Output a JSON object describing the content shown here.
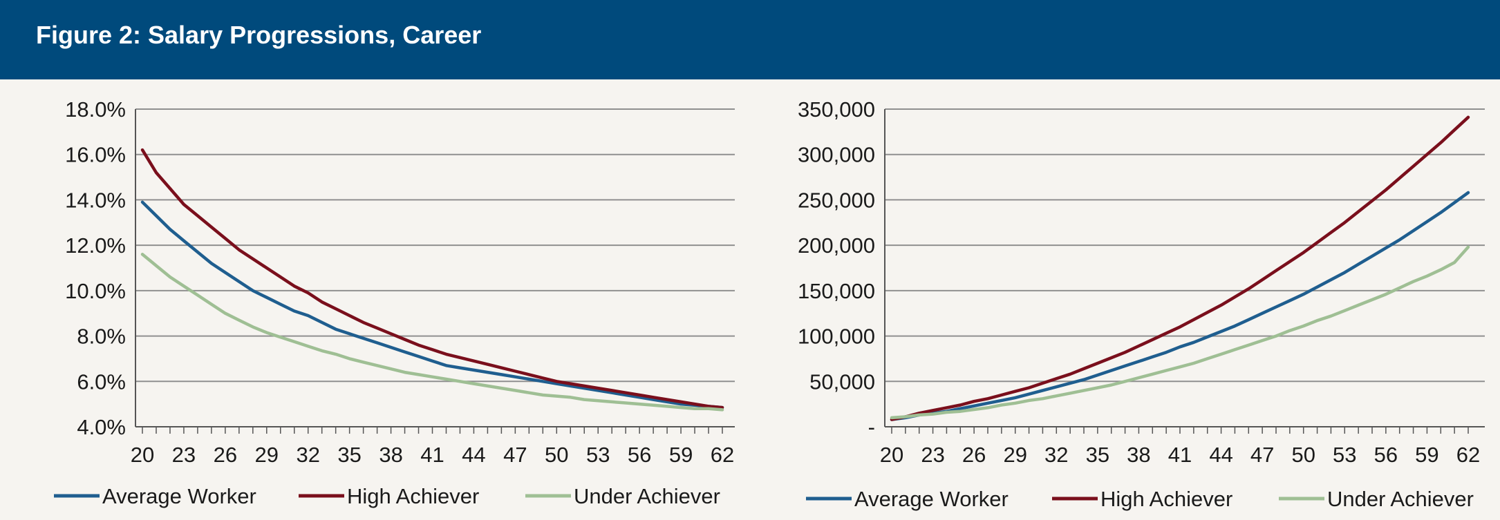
{
  "header": {
    "title": "Figure 2: Salary Progressions, Career"
  },
  "chart_data": [
    {
      "type": "line",
      "title": "",
      "xlabel": "",
      "ylabel": "",
      "x": [
        20,
        21,
        22,
        23,
        24,
        25,
        26,
        27,
        28,
        29,
        30,
        31,
        32,
        33,
        34,
        35,
        36,
        37,
        38,
        39,
        40,
        41,
        42,
        43,
        44,
        45,
        46,
        47,
        48,
        49,
        50,
        51,
        52,
        53,
        54,
        55,
        56,
        57,
        58,
        59,
        60,
        61,
        62
      ],
      "x_tick_labels": [
        "20",
        "23",
        "26",
        "29",
        "32",
        "35",
        "38",
        "41",
        "44",
        "47",
        "50",
        "53",
        "56",
        "59",
        "62"
      ],
      "y_tick_labels": [
        "18.0%",
        "16.0%",
        "14.0%",
        "12.0%",
        "10.0%",
        "8.0%",
        "6.0%",
        "4.0%"
      ],
      "ylim": [
        4,
        18
      ],
      "y_unit": "%",
      "grid": true,
      "legend_position": "bottom",
      "series": [
        {
          "name": "Average Worker",
          "color": "#1f5e8f",
          "values": [
            13.9,
            13.3,
            12.7,
            12.2,
            11.7,
            11.2,
            10.8,
            10.4,
            10.0,
            9.7,
            9.4,
            9.1,
            8.9,
            8.6,
            8.3,
            8.1,
            7.9,
            7.7,
            7.5,
            7.3,
            7.1,
            6.9,
            6.7,
            6.6,
            6.5,
            6.4,
            6.3,
            6.2,
            6.1,
            6.0,
            5.9,
            5.8,
            5.7,
            5.6,
            5.5,
            5.4,
            5.3,
            5.2,
            5.1,
            5.0,
            4.95,
            4.9,
            4.85
          ]
        },
        {
          "name": "High Achiever",
          "color": "#7a0f1c",
          "values": [
            16.2,
            15.2,
            14.5,
            13.8,
            13.3,
            12.8,
            12.3,
            11.8,
            11.4,
            11.0,
            10.6,
            10.2,
            9.9,
            9.5,
            9.2,
            8.9,
            8.6,
            8.35,
            8.1,
            7.85,
            7.6,
            7.4,
            7.2,
            7.05,
            6.9,
            6.75,
            6.6,
            6.45,
            6.3,
            6.15,
            6.0,
            5.9,
            5.8,
            5.7,
            5.6,
            5.5,
            5.4,
            5.3,
            5.2,
            5.1,
            5.0,
            4.9,
            4.85
          ]
        },
        {
          "name": "Under Achiever",
          "color": "#9fbf94",
          "values": [
            11.6,
            11.1,
            10.6,
            10.2,
            9.8,
            9.4,
            9.0,
            8.7,
            8.4,
            8.15,
            7.95,
            7.75,
            7.55,
            7.35,
            7.2,
            7.0,
            6.85,
            6.7,
            6.55,
            6.4,
            6.3,
            6.2,
            6.1,
            6.0,
            5.9,
            5.8,
            5.7,
            5.6,
            5.5,
            5.4,
            5.35,
            5.3,
            5.2,
            5.15,
            5.1,
            5.05,
            5.0,
            4.95,
            4.9,
            4.85,
            4.8,
            4.8,
            4.75
          ]
        }
      ]
    },
    {
      "type": "line",
      "title": "",
      "xlabel": "",
      "ylabel": "",
      "x": [
        20,
        21,
        22,
        23,
        24,
        25,
        26,
        27,
        28,
        29,
        30,
        31,
        32,
        33,
        34,
        35,
        36,
        37,
        38,
        39,
        40,
        41,
        42,
        43,
        44,
        45,
        46,
        47,
        48,
        49,
        50,
        51,
        52,
        53,
        54,
        55,
        56,
        57,
        58,
        59,
        60,
        61,
        62
      ],
      "x_tick_labels": [
        "20",
        "23",
        "26",
        "29",
        "32",
        "35",
        "38",
        "41",
        "44",
        "47",
        "50",
        "53",
        "56",
        "59",
        "62"
      ],
      "y_tick_labels": [
        "350,000",
        "300,000",
        "250,000",
        "200,000",
        "150,000",
        "100,000",
        "50,000",
        "-"
      ],
      "ylim": [
        0,
        350000
      ],
      "grid": true,
      "legend_position": "bottom",
      "series": [
        {
          "name": "Average Worker",
          "color": "#1f5e8f",
          "values": [
            8000,
            10000,
            13000,
            15000,
            17000,
            20000,
            23000,
            26000,
            29000,
            32000,
            36000,
            40000,
            44000,
            48000,
            52000,
            57000,
            62000,
            67000,
            72000,
            77000,
            82000,
            88000,
            93000,
            99000,
            105000,
            111000,
            118000,
            125000,
            132000,
            139000,
            146000,
            154000,
            162000,
            170000,
            179000,
            188000,
            197000,
            206000,
            216000,
            226000,
            236000,
            247000,
            258000
          ]
        },
        {
          "name": "High Achiever",
          "color": "#7a0f1c",
          "values": [
            8000,
            11000,
            15000,
            18000,
            21000,
            24000,
            28000,
            31000,
            35000,
            39000,
            43000,
            48000,
            53000,
            58000,
            64000,
            70000,
            76000,
            82000,
            89000,
            96000,
            103000,
            110000,
            118000,
            126000,
            134000,
            143000,
            152000,
            162000,
            172000,
            182000,
            192000,
            203000,
            214000,
            225000,
            237000,
            249000,
            261000,
            274000,
            287000,
            300000,
            313000,
            327000,
            341000
          ]
        },
        {
          "name": "Under Achiever",
          "color": "#9fbf94",
          "values": [
            10000,
            11000,
            13000,
            14000,
            16000,
            17000,
            19000,
            21000,
            24000,
            26000,
            29000,
            31000,
            34000,
            37000,
            40000,
            43000,
            46000,
            50000,
            54000,
            58000,
            62000,
            66000,
            70000,
            75000,
            80000,
            85000,
            90000,
            95000,
            100000,
            106000,
            111000,
            117000,
            122000,
            128000,
            134000,
            140000,
            146000,
            153000,
            160000,
            166000,
            173000,
            181000,
            198000
          ]
        }
      ]
    }
  ]
}
